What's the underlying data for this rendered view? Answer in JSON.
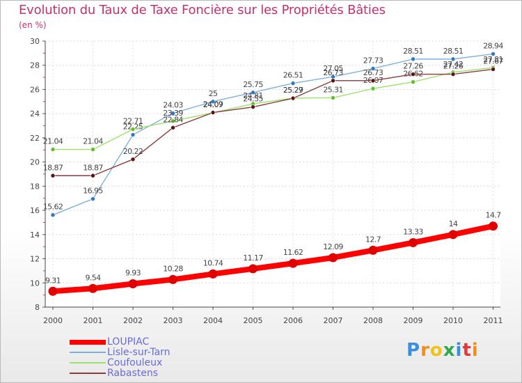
{
  "chart_data": {
    "type": "line",
    "title": "Evolution du Taux de Taxe Foncière sur les Propriétés Bâties",
    "ylabel": "(en %)",
    "xlabel": "",
    "ylim": [
      8,
      30
    ],
    "yticks": [
      8,
      10,
      12,
      14,
      16,
      18,
      20,
      22,
      24,
      26,
      28,
      30
    ],
    "categories": [
      "2000",
      "2001",
      "2002",
      "2003",
      "2004",
      "2005",
      "2006",
      "2007",
      "2008",
      "2009",
      "2010",
      "2011"
    ],
    "grid": true,
    "series": [
      {
        "name": "LOUPIAC",
        "color": "#ff0000",
        "marker_color": "#e00000",
        "emphasis": true,
        "values": [
          9.31,
          9.54,
          9.93,
          10.28,
          10.74,
          11.17,
          11.62,
          12.09,
          12.7,
          13.33,
          14,
          14.7
        ],
        "labels": [
          "9.31",
          "9.54",
          "9.93",
          "10.28",
          "10.74",
          "11.17",
          "11.62",
          "12.09",
          "12.7",
          "13.33",
          "14",
          "14.7"
        ]
      },
      {
        "name": "Lisle-sur-Tarn",
        "color": "#7cb0df",
        "marker_color": "#2f78c4",
        "emphasis": false,
        "values": [
          15.62,
          16.95,
          22.25,
          24.03,
          25,
          25.75,
          26.51,
          27.05,
          27.73,
          28.51,
          28.51,
          28.94
        ],
        "labels": [
          "15.62",
          "16.95",
          "22.25",
          "24.03",
          "25",
          "25.75",
          "26.51",
          "27.05",
          "27.73",
          "28.51",
          "28.51",
          "28.94"
        ]
      },
      {
        "name": "Coufouleux",
        "color": "#9be26a",
        "marker_color": "#5fc02c",
        "emphasis": false,
        "values": [
          21.04,
          21.04,
          22.71,
          23.39,
          24.07,
          24.81,
          25.29,
          25.31,
          26.07,
          26.62,
          27.42,
          27.81
        ],
        "labels": [
          "21.04",
          "21.04",
          "22.71",
          "23.39",
          "24.07",
          "24.81",
          "25.29",
          "25.31",
          "26.07",
          "26.62",
          "27.42",
          "27.81"
        ]
      },
      {
        "name": "Rabastens",
        "color": "#8a3c3c",
        "marker_color": "#5a1414",
        "emphasis": false,
        "values": [
          18.87,
          18.87,
          20.22,
          22.84,
          24.09,
          24.55,
          25.27,
          26.73,
          26.73,
          27.26,
          27.26,
          27.67
        ],
        "labels": [
          "18.87",
          "18.87",
          "20.22",
          "22.84",
          "24.09",
          "24.55",
          "25.27",
          "26.73",
          "26.73",
          "27.26",
          "27.26",
          "27.67"
        ]
      }
    ],
    "legend_position": "bottom-left"
  },
  "brand": {
    "text": "Proxiti",
    "colors": [
      "#3a8fe0",
      "#f28c1a",
      "#f2c11a",
      "#2fa84f",
      "#3a8fe0",
      "#e23a3a",
      "#f28c1a"
    ]
  }
}
